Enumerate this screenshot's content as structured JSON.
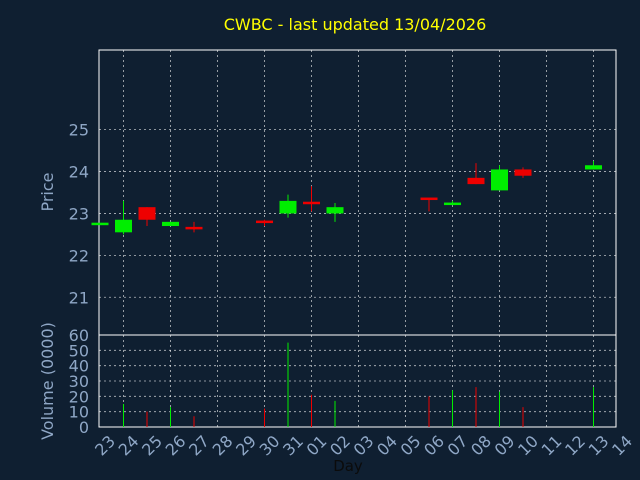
{
  "colors": {
    "background": "#0f1f31",
    "frame": "#ffffff",
    "grid": "#ffffff",
    "title": "#ffff00",
    "axis_text": "#8fa7c6",
    "up": "#00ee00",
    "down": "#ee0000"
  },
  "chart_data": {
    "type": "candlestick",
    "title": "CWBC - last updated 13/04/2026",
    "xlabel": "Day",
    "price_panel": {
      "ylabel": "Price",
      "ylim": [
        20.1,
        26.9
      ],
      "yticks": [
        21,
        22,
        23,
        24,
        25
      ]
    },
    "volume_panel": {
      "ylabel": "Volume (0000)",
      "ylim": [
        0,
        60
      ],
      "yticks": [
        0,
        10,
        20,
        30,
        40,
        50,
        60
      ]
    },
    "x_ticks": [
      "23",
      "24",
      "25",
      "26",
      "27",
      "28",
      "29",
      "30",
      "31",
      "01",
      "02",
      "03",
      "04",
      "05",
      "06",
      "07",
      "08",
      "09",
      "10",
      "11",
      "12",
      "13",
      "14"
    ],
    "grid": true,
    "legend": "none",
    "candles": [
      {
        "day": "23",
        "open": 22.75,
        "close": 22.75,
        "high": 22.75,
        "low": 22.75,
        "volume": 0
      },
      {
        "day": "24",
        "open": 22.55,
        "close": 22.85,
        "high": 23.3,
        "low": 22.5,
        "volume": 15
      },
      {
        "day": "25",
        "open": 23.15,
        "close": 22.85,
        "high": 23.15,
        "low": 22.7,
        "volume": 10
      },
      {
        "day": "26",
        "open": 22.7,
        "close": 22.8,
        "high": 22.8,
        "low": 22.7,
        "volume": 13
      },
      {
        "day": "27",
        "open": 22.65,
        "close": 22.62,
        "high": 22.8,
        "low": 22.55,
        "volume": 7
      },
      {
        "day": "30",
        "open": 22.8,
        "close": 22.75,
        "high": 22.85,
        "low": 22.7,
        "volume": 12
      },
      {
        "day": "31",
        "open": 23.0,
        "close": 23.3,
        "high": 23.45,
        "low": 22.9,
        "volume": 55
      },
      {
        "day": "01",
        "open": 23.25,
        "close": 23.2,
        "high": 23.65,
        "low": 23.05,
        "volume": 21
      },
      {
        "day": "02",
        "open": 23.0,
        "close": 23.15,
        "high": 23.25,
        "low": 22.8,
        "volume": 17
      },
      {
        "day": "06",
        "open": 23.35,
        "close": 23.32,
        "high": 23.35,
        "low": 23.05,
        "volume": 20
      },
      {
        "day": "07",
        "open": 23.2,
        "close": 23.23,
        "high": 23.3,
        "low": 23.2,
        "volume": 24
      },
      {
        "day": "08",
        "open": 23.85,
        "close": 23.7,
        "high": 24.2,
        "low": 23.7,
        "volume": 26
      },
      {
        "day": "09",
        "open": 23.55,
        "close": 24.05,
        "high": 24.15,
        "low": 23.55,
        "volume": 23
      },
      {
        "day": "10",
        "open": 24.05,
        "close": 23.9,
        "high": 24.1,
        "low": 23.85,
        "volume": 13
      },
      {
        "day": "13",
        "open": 24.05,
        "close": 24.15,
        "high": 24.25,
        "low": 24.05,
        "volume": 26
      }
    ]
  }
}
